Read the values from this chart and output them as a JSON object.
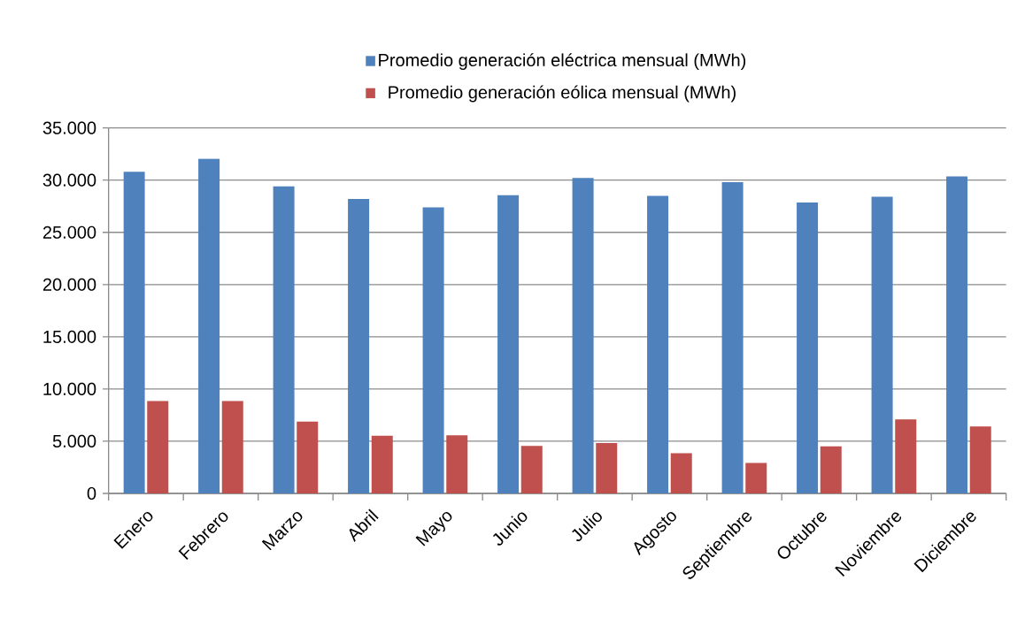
{
  "chart_data": {
    "type": "bar",
    "categories": [
      "Enero",
      "Febrero",
      "Marzo",
      "Abril",
      "Mayo",
      "Junio",
      "Julio",
      "Agosto",
      "Septiembre",
      "Octubre",
      "Noviembre",
      "Diciembre"
    ],
    "series": [
      {
        "name": "Promedio generación eléctrica mensual (MWh)",
        "color": "#4f81bd",
        "values": [
          30800,
          32050,
          29400,
          28200,
          27400,
          28550,
          30200,
          28500,
          29800,
          27850,
          28400,
          30350
        ]
      },
      {
        "name": "Promedio generación eólica mensual (MWh)",
        "color": "#c0504d",
        "values": [
          8850,
          8850,
          6880,
          5530,
          5560,
          4540,
          4820,
          3850,
          2920,
          4500,
          7100,
          6420
        ]
      }
    ],
    "ylim": [
      0,
      35000
    ],
    "yticks": [
      0,
      {
        "value": 5000,
        "label": "5.000"
      },
      {
        "value": 10000,
        "label": "10.000"
      },
      {
        "value": 15000,
        "label": "15.000"
      },
      {
        "value": 20000,
        "label": "20.000"
      },
      {
        "value": 25000,
        "label": "25.000"
      },
      {
        "value": 30000,
        "label": "30.000"
      },
      {
        "value": 35000,
        "label": "35.000"
      }
    ],
    "grid": "y",
    "legend": "top"
  }
}
